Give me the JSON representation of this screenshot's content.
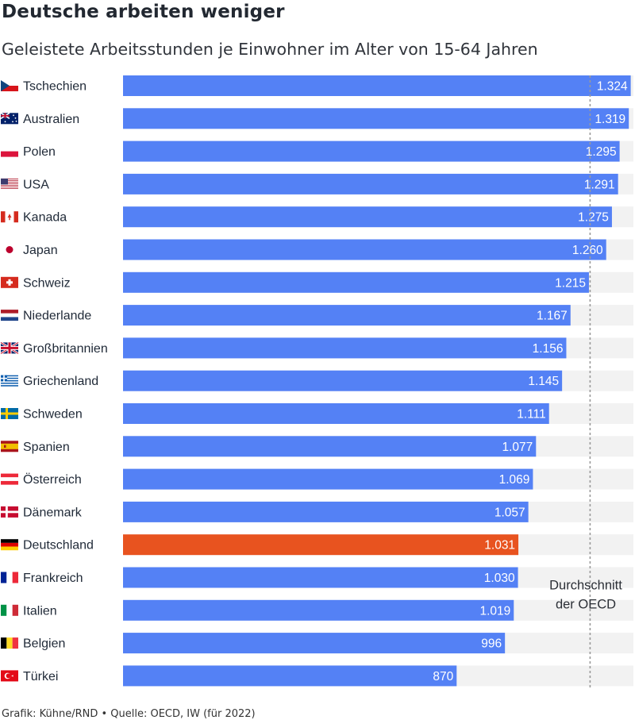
{
  "title": "Deutsche arbeiten weniger",
  "subtitle": "Geleistete Arbeitsstunden je Einwohner im Alter von 15-64 Jahren",
  "source": "Grafik: Kühne/RND • Quelle: OECD, IW (für 2022)",
  "colors": {
    "bar": "#5481f5",
    "highlight": "#e8531f",
    "track": "#f2f2f2",
    "label_text": "#ffffff",
    "reference_line": "#9a9a9a"
  },
  "chart_data": {
    "type": "bar",
    "orientation": "horizontal",
    "title": "Deutsche arbeiten weniger",
    "subtitle": "Geleistete Arbeitsstunden je Einwohner im Alter von 15-64 Jahren",
    "xlim": [
      0,
      1331
    ],
    "categories": [
      "Tschechien",
      "Australien",
      "Polen",
      "USA",
      "Kanada",
      "Japan",
      "Schweiz",
      "Niederlande",
      "Großbritannien",
      "Griechenland",
      "Schweden",
      "Spanien",
      "Österreich",
      "Dänemark",
      "Deutschland",
      "Frankreich",
      "Italien",
      "Belgien",
      "Türkei"
    ],
    "values": [
      1324,
      1319,
      1295,
      1291,
      1275,
      1260,
      1215,
      1167,
      1156,
      1145,
      1111,
      1077,
      1069,
      1057,
      1031,
      1030,
      1019,
      996,
      870
    ],
    "value_labels": [
      "1.324",
      "1.319",
      "1.295",
      "1.291",
      "1.275",
      "1.260",
      "1.215",
      "1.167",
      "1.156",
      "1.145",
      "1.111",
      "1.077",
      "1.069",
      "1.057",
      "1.031",
      "1.030",
      "1.019",
      "996",
      "870"
    ],
    "flags": [
      "flag-cz-icon",
      "flag-au-icon",
      "flag-pl-icon",
      "flag-us-icon",
      "flag-ca-icon",
      "flag-jp-icon",
      "flag-ch-icon",
      "flag-nl-icon",
      "flag-gb-icon",
      "flag-gr-icon",
      "flag-se-icon",
      "flag-es-icon",
      "flag-at-icon",
      "flag-dk-icon",
      "flag-de-icon",
      "flag-fr-icon",
      "flag-it-icon",
      "flag-be-icon",
      "flag-tr-icon"
    ],
    "highlight": "Deutschland",
    "reference_line": {
      "value": 1218,
      "label_lines": [
        "Durchschnitt",
        "der OECD"
      ]
    }
  }
}
